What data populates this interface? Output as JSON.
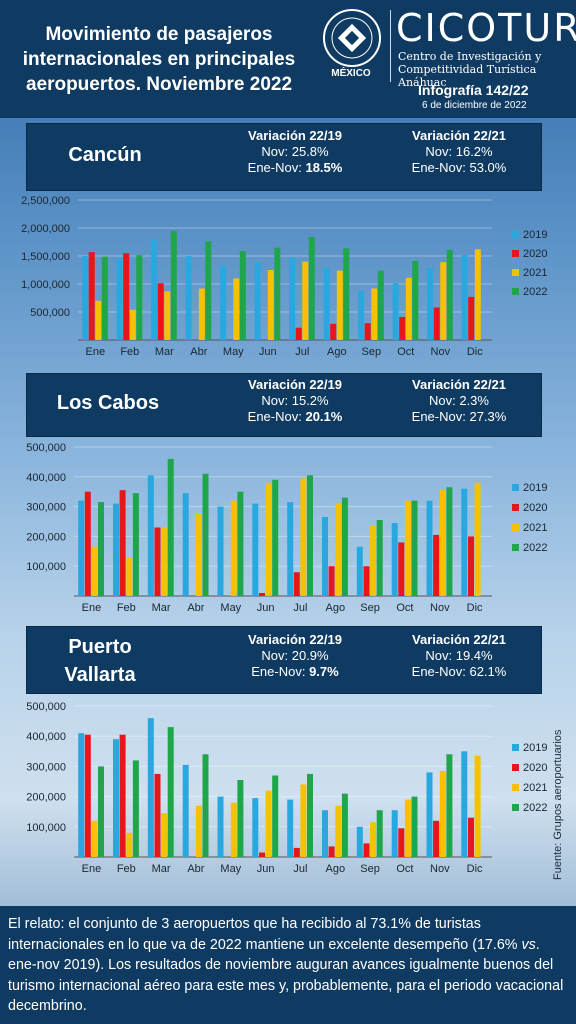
{
  "header": {
    "title_lines": [
      "Movimiento de pasajeros",
      "internacionales en principales",
      "aeropuertos. Noviembre 2022"
    ],
    "university_label": "MÉXICO",
    "brand": "CICOTUR",
    "brand_sub_lines": [
      "Centro de Investigación y",
      "Competitividad Turística Anáhuac"
    ],
    "infografia": "Infografía 142/22",
    "date": "6 de diciembre de 2022"
  },
  "colors": {
    "s2019": "#29a8e0",
    "s2020": "#e8161b",
    "s2021": "#f5c100",
    "s2022": "#1fa64a",
    "panel_bg": "#0f3b62"
  },
  "airports": [
    {
      "name": "Cancún",
      "var1_title": "Variación 22/19",
      "var1_nov": "Nov: 25.8%",
      "var1_ene_label": "Ene-Nov: ",
      "var1_ene_value": "18.5%",
      "var2_title": "Variación 22/21",
      "var2_nov": "Nov: 16.2%",
      "var2_ene": "Ene-Nov: 53.0%"
    },
    {
      "name": "Los Cabos",
      "var1_title": "Variación 22/19",
      "var1_nov": "Nov: 15.2%",
      "var1_ene_label": "Ene-Nov: ",
      "var1_ene_value": "20.1%",
      "var2_title": "Variación 22/21",
      "var2_nov": "Nov: 2.3%",
      "var2_ene": "Ene-Nov: 27.3%"
    },
    {
      "name_lines": [
        "Puerto",
        "Vallarta"
      ],
      "var1_title": "Variación 22/19",
      "var1_nov": "Nov: 20.9%",
      "var1_ene_label": "Ene-Nov: ",
      "var1_ene_value": "9.7%",
      "var2_title": "Variación 22/21",
      "var2_nov": "Nov: 19.4%",
      "var2_ene": "Ene-Nov: 62.1%"
    }
  ],
  "chart_data": [
    {
      "type": "bar",
      "categories": [
        "Ene",
        "Feb",
        "Mar",
        "Abr",
        "May",
        "Jun",
        "Jul",
        "Ago",
        "Sep",
        "Oct",
        "Nov",
        "Dic"
      ],
      "ylim": [
        0,
        2500000
      ],
      "ytick_values": [
        500000,
        1000000,
        1500000,
        2000000,
        2500000
      ],
      "ytick_labels": [
        "500,000",
        "1,000,000",
        "1,500,000",
        "2,000,000",
        "2,500,000"
      ],
      "series": [
        {
          "name": "2019",
          "values": [
            1500000,
            1450000,
            1800000,
            1500000,
            1320000,
            1380000,
            1470000,
            1290000,
            880000,
            1010000,
            1290000,
            1510000
          ]
        },
        {
          "name": "2020",
          "values": [
            1570000,
            1550000,
            1010000,
            0,
            0,
            0,
            220000,
            290000,
            300000,
            410000,
            580000,
            770000
          ]
        },
        {
          "name": "2021",
          "values": [
            700000,
            540000,
            870000,
            920000,
            1100000,
            1250000,
            1400000,
            1240000,
            920000,
            1110000,
            1390000,
            1620000
          ]
        },
        {
          "name": "2022",
          "values": [
            1490000,
            1510000,
            1950000,
            1760000,
            1590000,
            1650000,
            1840000,
            1640000,
            1240000,
            1410000,
            1610000,
            null
          ]
        }
      ]
    },
    {
      "type": "bar",
      "categories": [
        "Ene",
        "Feb",
        "Mar",
        "Abr",
        "May",
        "Jun",
        "Jul",
        "Ago",
        "Sep",
        "Oct",
        "Nov",
        "Dic"
      ],
      "ylim": [
        0,
        500000
      ],
      "ytick_values": [
        100000,
        200000,
        300000,
        400000,
        500000
      ],
      "ytick_labels": [
        "100,000",
        "200,000",
        "300,000",
        "400,000",
        "500,000"
      ],
      "series": [
        {
          "name": "2019",
          "values": [
            320000,
            310000,
            405000,
            345000,
            300000,
            310000,
            315000,
            265000,
            165000,
            245000,
            320000,
            360000
          ]
        },
        {
          "name": "2020",
          "values": [
            350000,
            355000,
            230000,
            0,
            0,
            10000,
            80000,
            100000,
            100000,
            180000,
            205000,
            200000
          ]
        },
        {
          "name": "2021",
          "values": [
            165000,
            130000,
            230000,
            275000,
            320000,
            380000,
            395000,
            310000,
            235000,
            320000,
            355000,
            380000
          ]
        },
        {
          "name": "2022",
          "values": [
            315000,
            345000,
            460000,
            410000,
            350000,
            390000,
            405000,
            330000,
            255000,
            320000,
            365000,
            null
          ]
        }
      ]
    },
    {
      "type": "bar",
      "categories": [
        "Ene",
        "Feb",
        "Mar",
        "Abr",
        "May",
        "Jun",
        "Jul",
        "Ago",
        "Sep",
        "Oct",
        "Nov",
        "Dic"
      ],
      "ylim": [
        0,
        500000
      ],
      "ytick_values": [
        100000,
        200000,
        300000,
        400000,
        500000
      ],
      "ytick_labels": [
        "100,000",
        "200,000",
        "300,000",
        "400,000",
        "500,000"
      ],
      "series": [
        {
          "name": "2019",
          "values": [
            410000,
            390000,
            460000,
            305000,
            200000,
            195000,
            190000,
            155000,
            100000,
            155000,
            280000,
            350000
          ]
        },
        {
          "name": "2020",
          "values": [
            405000,
            405000,
            275000,
            0,
            0,
            15000,
            30000,
            35000,
            45000,
            95000,
            120000,
            130000
          ]
        },
        {
          "name": "2021",
          "values": [
            120000,
            80000,
            145000,
            170000,
            180000,
            220000,
            240000,
            170000,
            115000,
            190000,
            285000,
            335000
          ]
        },
        {
          "name": "2022",
          "values": [
            300000,
            320000,
            430000,
            340000,
            255000,
            270000,
            275000,
            210000,
            155000,
            200000,
            340000,
            null
          ]
        }
      ]
    }
  ],
  "legend": [
    "2019",
    "2020",
    "2021",
    "2022"
  ],
  "source": "Fuente: Grupos aeroportuarios",
  "footer": {
    "relato_label": "El relato",
    "text_a": ": el conjunto de 3 aeropuertos que ha recibido al 73.1% de turistas internacionales en lo que va de 2022 mantiene un excelente desempeño (17.6% ",
    "text_vs": "vs",
    "text_b": ". ene-nov 2019). Los resultados de noviembre auguran avances igualmente buenos del turismo internacional aéreo para este mes y, probablemente, para el periodo vacacional decembrino."
  }
}
